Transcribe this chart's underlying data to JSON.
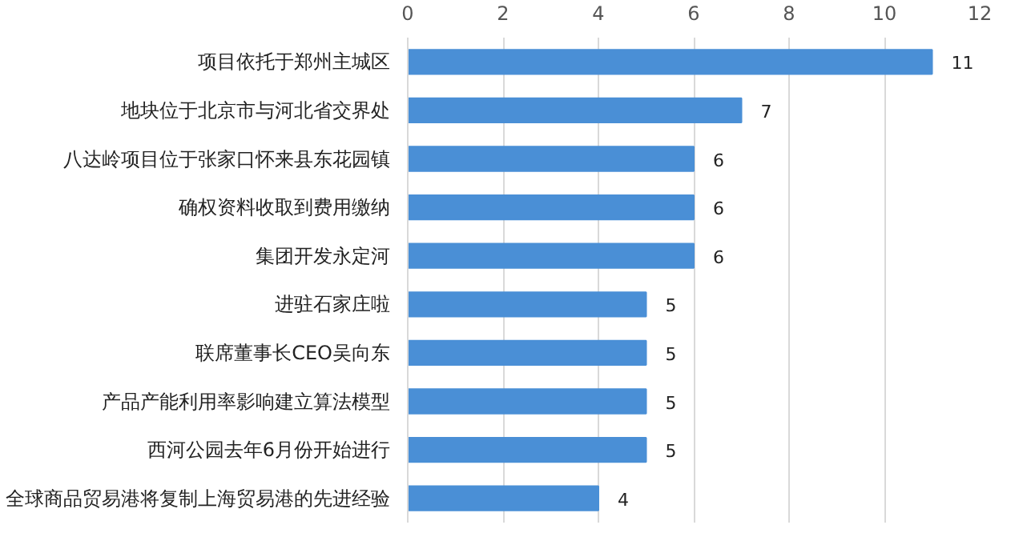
{
  "chart_data": {
    "type": "bar",
    "orientation": "horizontal",
    "categories": [
      "项目依托于郑州主城区",
      "地块位于北京市与河北省交界处",
      "八达岭项目位于张家口怀来县东花园镇",
      "确权资料收取到费用缴纳",
      "集团开发永定河",
      "进驻石家庄啦",
      "联席董事长CEO吴向东",
      "产品产能利用率影响建立算法模型",
      "西河公园去年6月份开始进行",
      "全球商品贸易港将复制上海贸易港的先进经验"
    ],
    "values": [
      11,
      7,
      6,
      6,
      6,
      5,
      5,
      5,
      5,
      4
    ],
    "color": "#4a8fd6",
    "xlim": [
      0,
      12
    ],
    "xticks": [
      0,
      2,
      4,
      6,
      8,
      10,
      12
    ],
    "grid": "x",
    "data_labels": true
  }
}
